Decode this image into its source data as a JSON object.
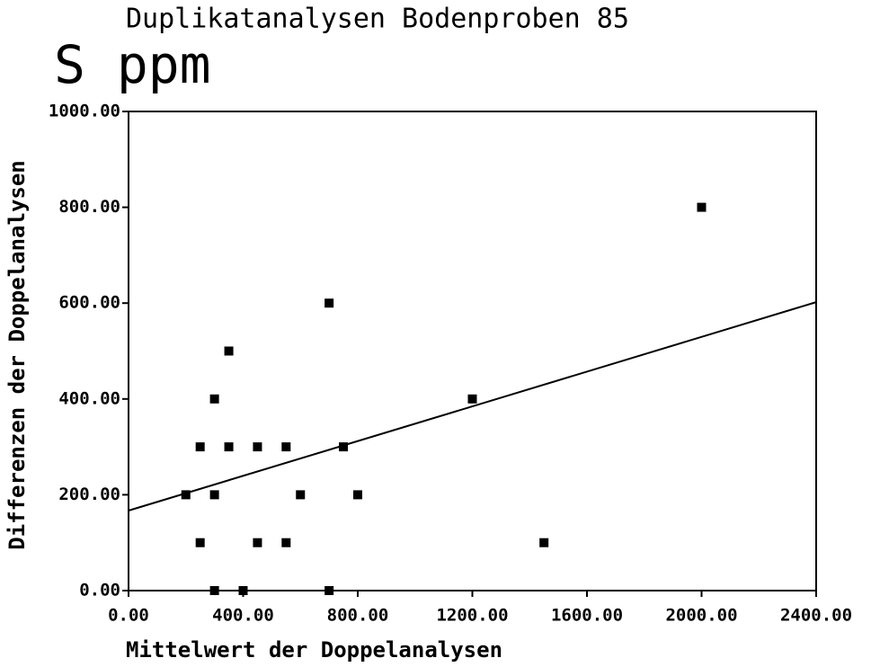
{
  "chart_data": {
    "type": "scatter",
    "title": "Duplikatanalysen Bodenproben 85",
    "subtitle": "S ppm",
    "x_label": "Mittelwert der Doppelanalysen",
    "y_label": "Differenzen der Doppelanalysen",
    "color": "#000000",
    "x": [
      200,
      250,
      250,
      300,
      300,
      300,
      350,
      350,
      400,
      450,
      450,
      550,
      550,
      600,
      700,
      700,
      750,
      800,
      1200,
      1450,
      2000
    ],
    "values": [
      200,
      300,
      100,
      400,
      200,
      0,
      500,
      300,
      0,
      300,
      100,
      300,
      100,
      200,
      600,
      0,
      300,
      200,
      400,
      100,
      800
    ],
    "regression": {
      "x": [
        0,
        2400
      ],
      "y": [
        167,
        602
      ]
    },
    "xlim": [
      0,
      2400
    ],
    "ylim": [
      0,
      1000
    ],
    "xticks": [
      {
        "value": 0,
        "label": "0.00"
      },
      {
        "value": 400,
        "label": "400.00"
      },
      {
        "value": 800,
        "label": "800.00"
      },
      {
        "value": 1200,
        "label": "1200.00"
      },
      {
        "value": 1600,
        "label": "1600.00"
      },
      {
        "value": 2000,
        "label": "2000.00"
      },
      {
        "value": 2400,
        "label": "2400.00"
      }
    ],
    "yticks": [
      {
        "value": 0,
        "label": "0.00"
      },
      {
        "value": 200,
        "label": "200.00"
      },
      {
        "value": 400,
        "label": "400.00"
      },
      {
        "value": 600,
        "label": "600.00"
      },
      {
        "value": 800,
        "label": "800.00"
      },
      {
        "value": 1000,
        "label": "1000.00"
      }
    ],
    "grid": false
  }
}
